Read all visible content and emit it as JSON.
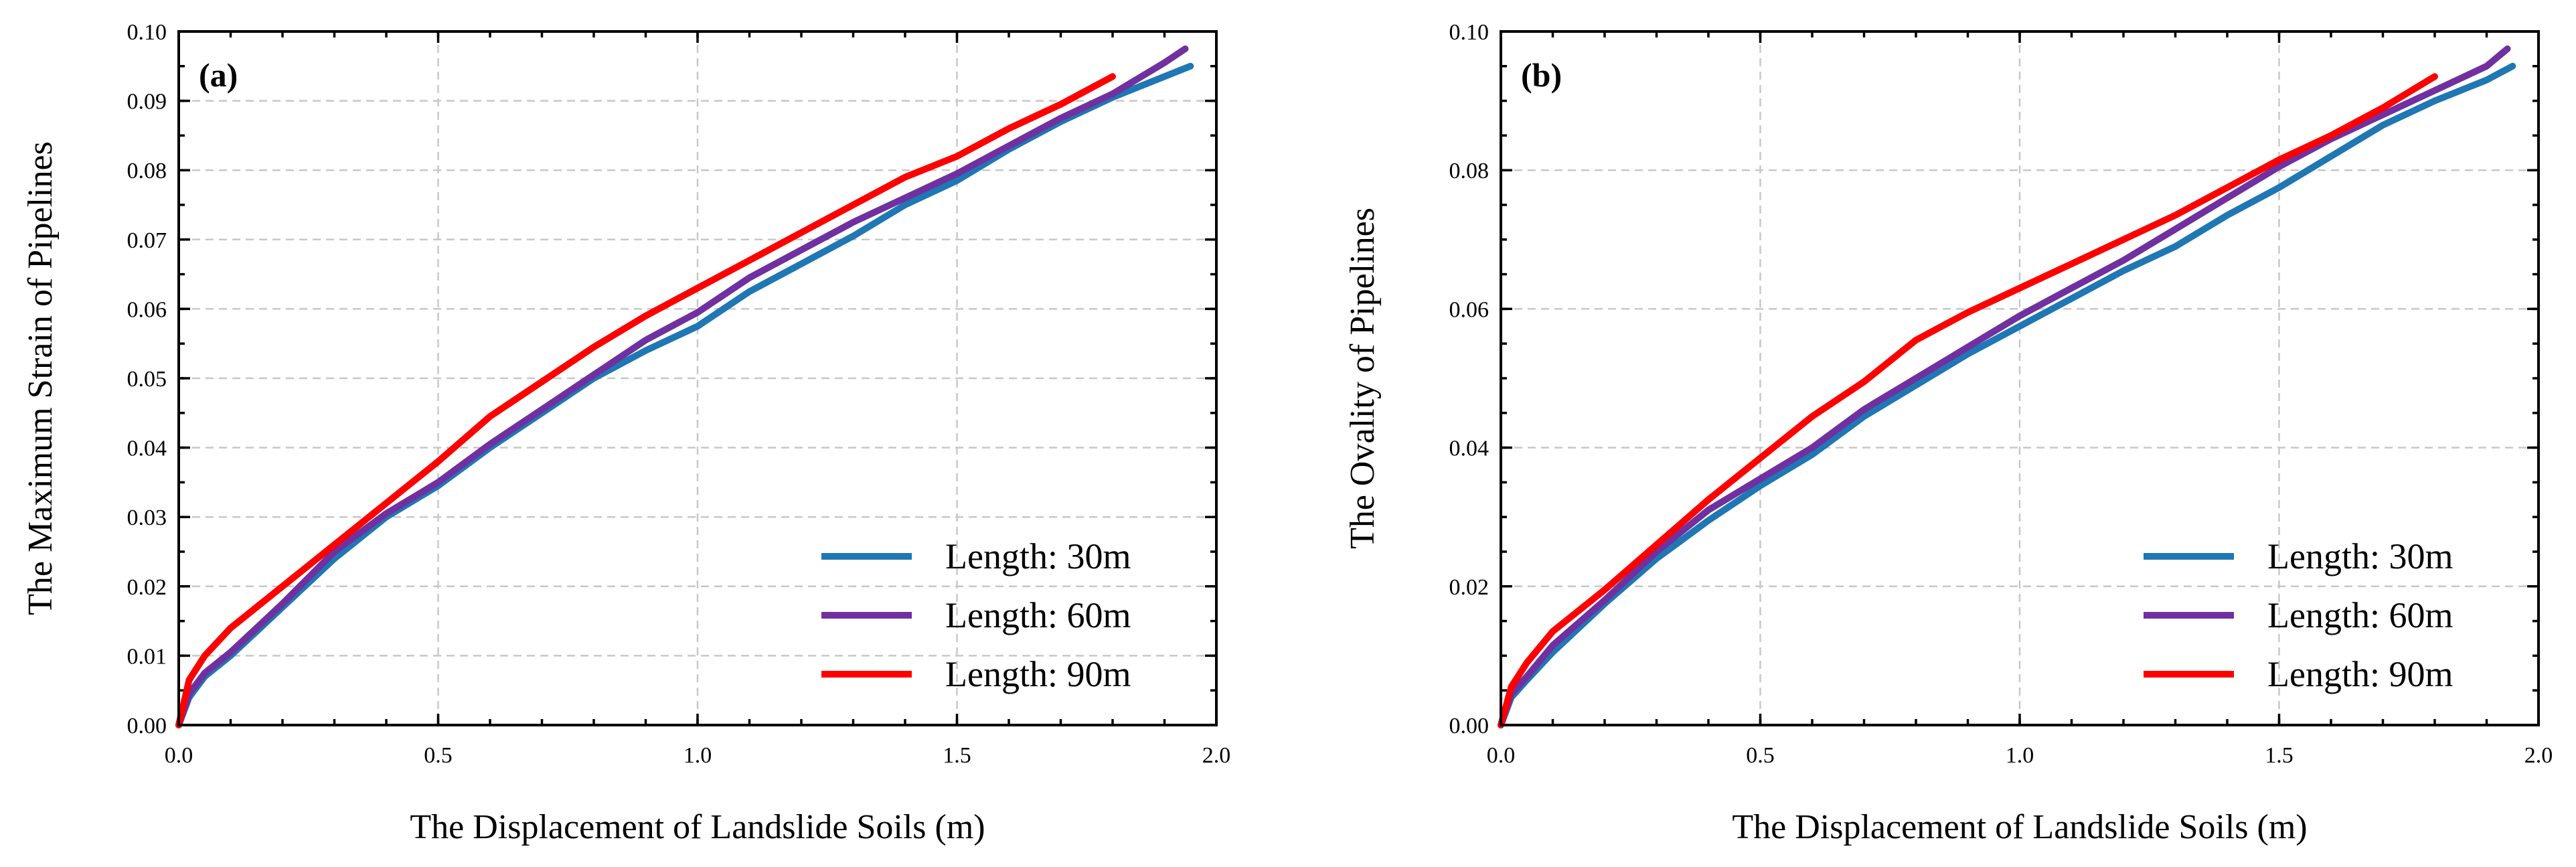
{
  "chart_data": [
    {
      "type": "line",
      "panel_label": "(a)",
      "title": "",
      "xlabel": "The Displacement of Landslide Soils (m)",
      "ylabel": "The Maximum Strain of Pipelines",
      "xlim": [
        0.0,
        2.0
      ],
      "ylim": [
        0.0,
        0.1
      ],
      "xticks": [
        "0.0",
        "0.5",
        "1.0",
        "1.5",
        "2.0"
      ],
      "yticks": [
        "0.00",
        "0.01",
        "0.02",
        "0.03",
        "0.04",
        "0.05",
        "0.06",
        "0.07",
        "0.08",
        "0.09",
        "0.10"
      ],
      "grid": true,
      "legend_position": "bottom-right",
      "series": [
        {
          "name": "Length: 30m",
          "color": "#1f77b4",
          "x": [
            0,
            0.02,
            0.05,
            0.1,
            0.2,
            0.3,
            0.4,
            0.5,
            0.6,
            0.7,
            0.8,
            0.9,
            1.0,
            1.1,
            1.2,
            1.3,
            1.4,
            1.5,
            1.6,
            1.7,
            1.8,
            1.9,
            1.95
          ],
          "y": [
            0,
            0.004,
            0.007,
            0.01,
            0.017,
            0.024,
            0.03,
            0.0345,
            0.04,
            0.045,
            0.05,
            0.054,
            0.0575,
            0.0625,
            0.0665,
            0.0705,
            0.075,
            0.0785,
            0.083,
            0.087,
            0.0905,
            0.0935,
            0.095
          ]
        },
        {
          "name": "Length: 60m",
          "color": "#7030a0",
          "x": [
            0,
            0.02,
            0.05,
            0.1,
            0.2,
            0.3,
            0.4,
            0.5,
            0.6,
            0.7,
            0.8,
            0.9,
            1.0,
            1.1,
            1.2,
            1.3,
            1.4,
            1.5,
            1.6,
            1.7,
            1.8,
            1.9,
            1.94
          ],
          "y": [
            0,
            0.0045,
            0.0075,
            0.0105,
            0.0175,
            0.025,
            0.0305,
            0.035,
            0.0405,
            0.0455,
            0.0505,
            0.0555,
            0.0595,
            0.0645,
            0.0685,
            0.0725,
            0.076,
            0.0795,
            0.0835,
            0.0875,
            0.091,
            0.0955,
            0.0975
          ]
        },
        {
          "name": "Length: 90m",
          "color": "#ff0000",
          "x": [
            0,
            0.02,
            0.05,
            0.1,
            0.2,
            0.3,
            0.4,
            0.5,
            0.6,
            0.7,
            0.8,
            0.9,
            1.0,
            1.1,
            1.2,
            1.3,
            1.4,
            1.5,
            1.6,
            1.7,
            1.8
          ],
          "y": [
            0,
            0.0065,
            0.01,
            0.014,
            0.02,
            0.026,
            0.032,
            0.038,
            0.0445,
            0.0495,
            0.0545,
            0.059,
            0.063,
            0.067,
            0.071,
            0.075,
            0.079,
            0.082,
            0.086,
            0.0895,
            0.0935
          ]
        }
      ]
    },
    {
      "type": "line",
      "panel_label": "(b)",
      "title": "",
      "xlabel": "The Displacement of Landslide Soils (m)",
      "ylabel": "The Ovality of Pipelines",
      "xlim": [
        0.0,
        2.0
      ],
      "ylim": [
        0.0,
        0.1
      ],
      "xticks": [
        "0.0",
        "0.5",
        "1.0",
        "1.5",
        "2.0"
      ],
      "yticks": [
        "0.00",
        "0.02",
        "0.04",
        "0.06",
        "0.08",
        "0.10"
      ],
      "grid": true,
      "legend_position": "bottom-right",
      "series": [
        {
          "name": "Length: 30m",
          "color": "#1f77b4",
          "x": [
            0,
            0.02,
            0.05,
            0.1,
            0.2,
            0.3,
            0.4,
            0.5,
            0.6,
            0.7,
            0.8,
            0.9,
            1.0,
            1.1,
            1.2,
            1.3,
            1.4,
            1.5,
            1.6,
            1.7,
            1.8,
            1.9,
            1.95
          ],
          "y": [
            0,
            0.004,
            0.0065,
            0.0105,
            0.0175,
            0.024,
            0.0295,
            0.0345,
            0.039,
            0.0445,
            0.049,
            0.0535,
            0.0575,
            0.0615,
            0.0655,
            0.069,
            0.0735,
            0.0775,
            0.082,
            0.0865,
            0.09,
            0.093,
            0.095
          ]
        },
        {
          "name": "Length: 60m",
          "color": "#7030a0",
          "x": [
            0,
            0.02,
            0.05,
            0.1,
            0.2,
            0.3,
            0.4,
            0.5,
            0.6,
            0.7,
            0.8,
            0.9,
            1.0,
            1.1,
            1.2,
            1.3,
            1.4,
            1.5,
            1.6,
            1.7,
            1.8,
            1.9,
            1.94
          ],
          "y": [
            0,
            0.0045,
            0.007,
            0.0115,
            0.018,
            0.025,
            0.031,
            0.0355,
            0.04,
            0.0455,
            0.05,
            0.0545,
            0.059,
            0.063,
            0.067,
            0.0715,
            0.076,
            0.0805,
            0.0845,
            0.088,
            0.0915,
            0.095,
            0.0975
          ]
        },
        {
          "name": "Length: 90m",
          "color": "#ff0000",
          "x": [
            0,
            0.02,
            0.05,
            0.1,
            0.2,
            0.3,
            0.4,
            0.5,
            0.6,
            0.7,
            0.8,
            0.9,
            1.0,
            1.1,
            1.2,
            1.3,
            1.4,
            1.5,
            1.6,
            1.7,
            1.8
          ],
          "y": [
            0,
            0.0055,
            0.009,
            0.0135,
            0.0195,
            0.026,
            0.0325,
            0.0385,
            0.0445,
            0.0495,
            0.0555,
            0.0595,
            0.063,
            0.0665,
            0.07,
            0.0735,
            0.0775,
            0.0815,
            0.085,
            0.089,
            0.0935
          ]
        }
      ]
    }
  ]
}
